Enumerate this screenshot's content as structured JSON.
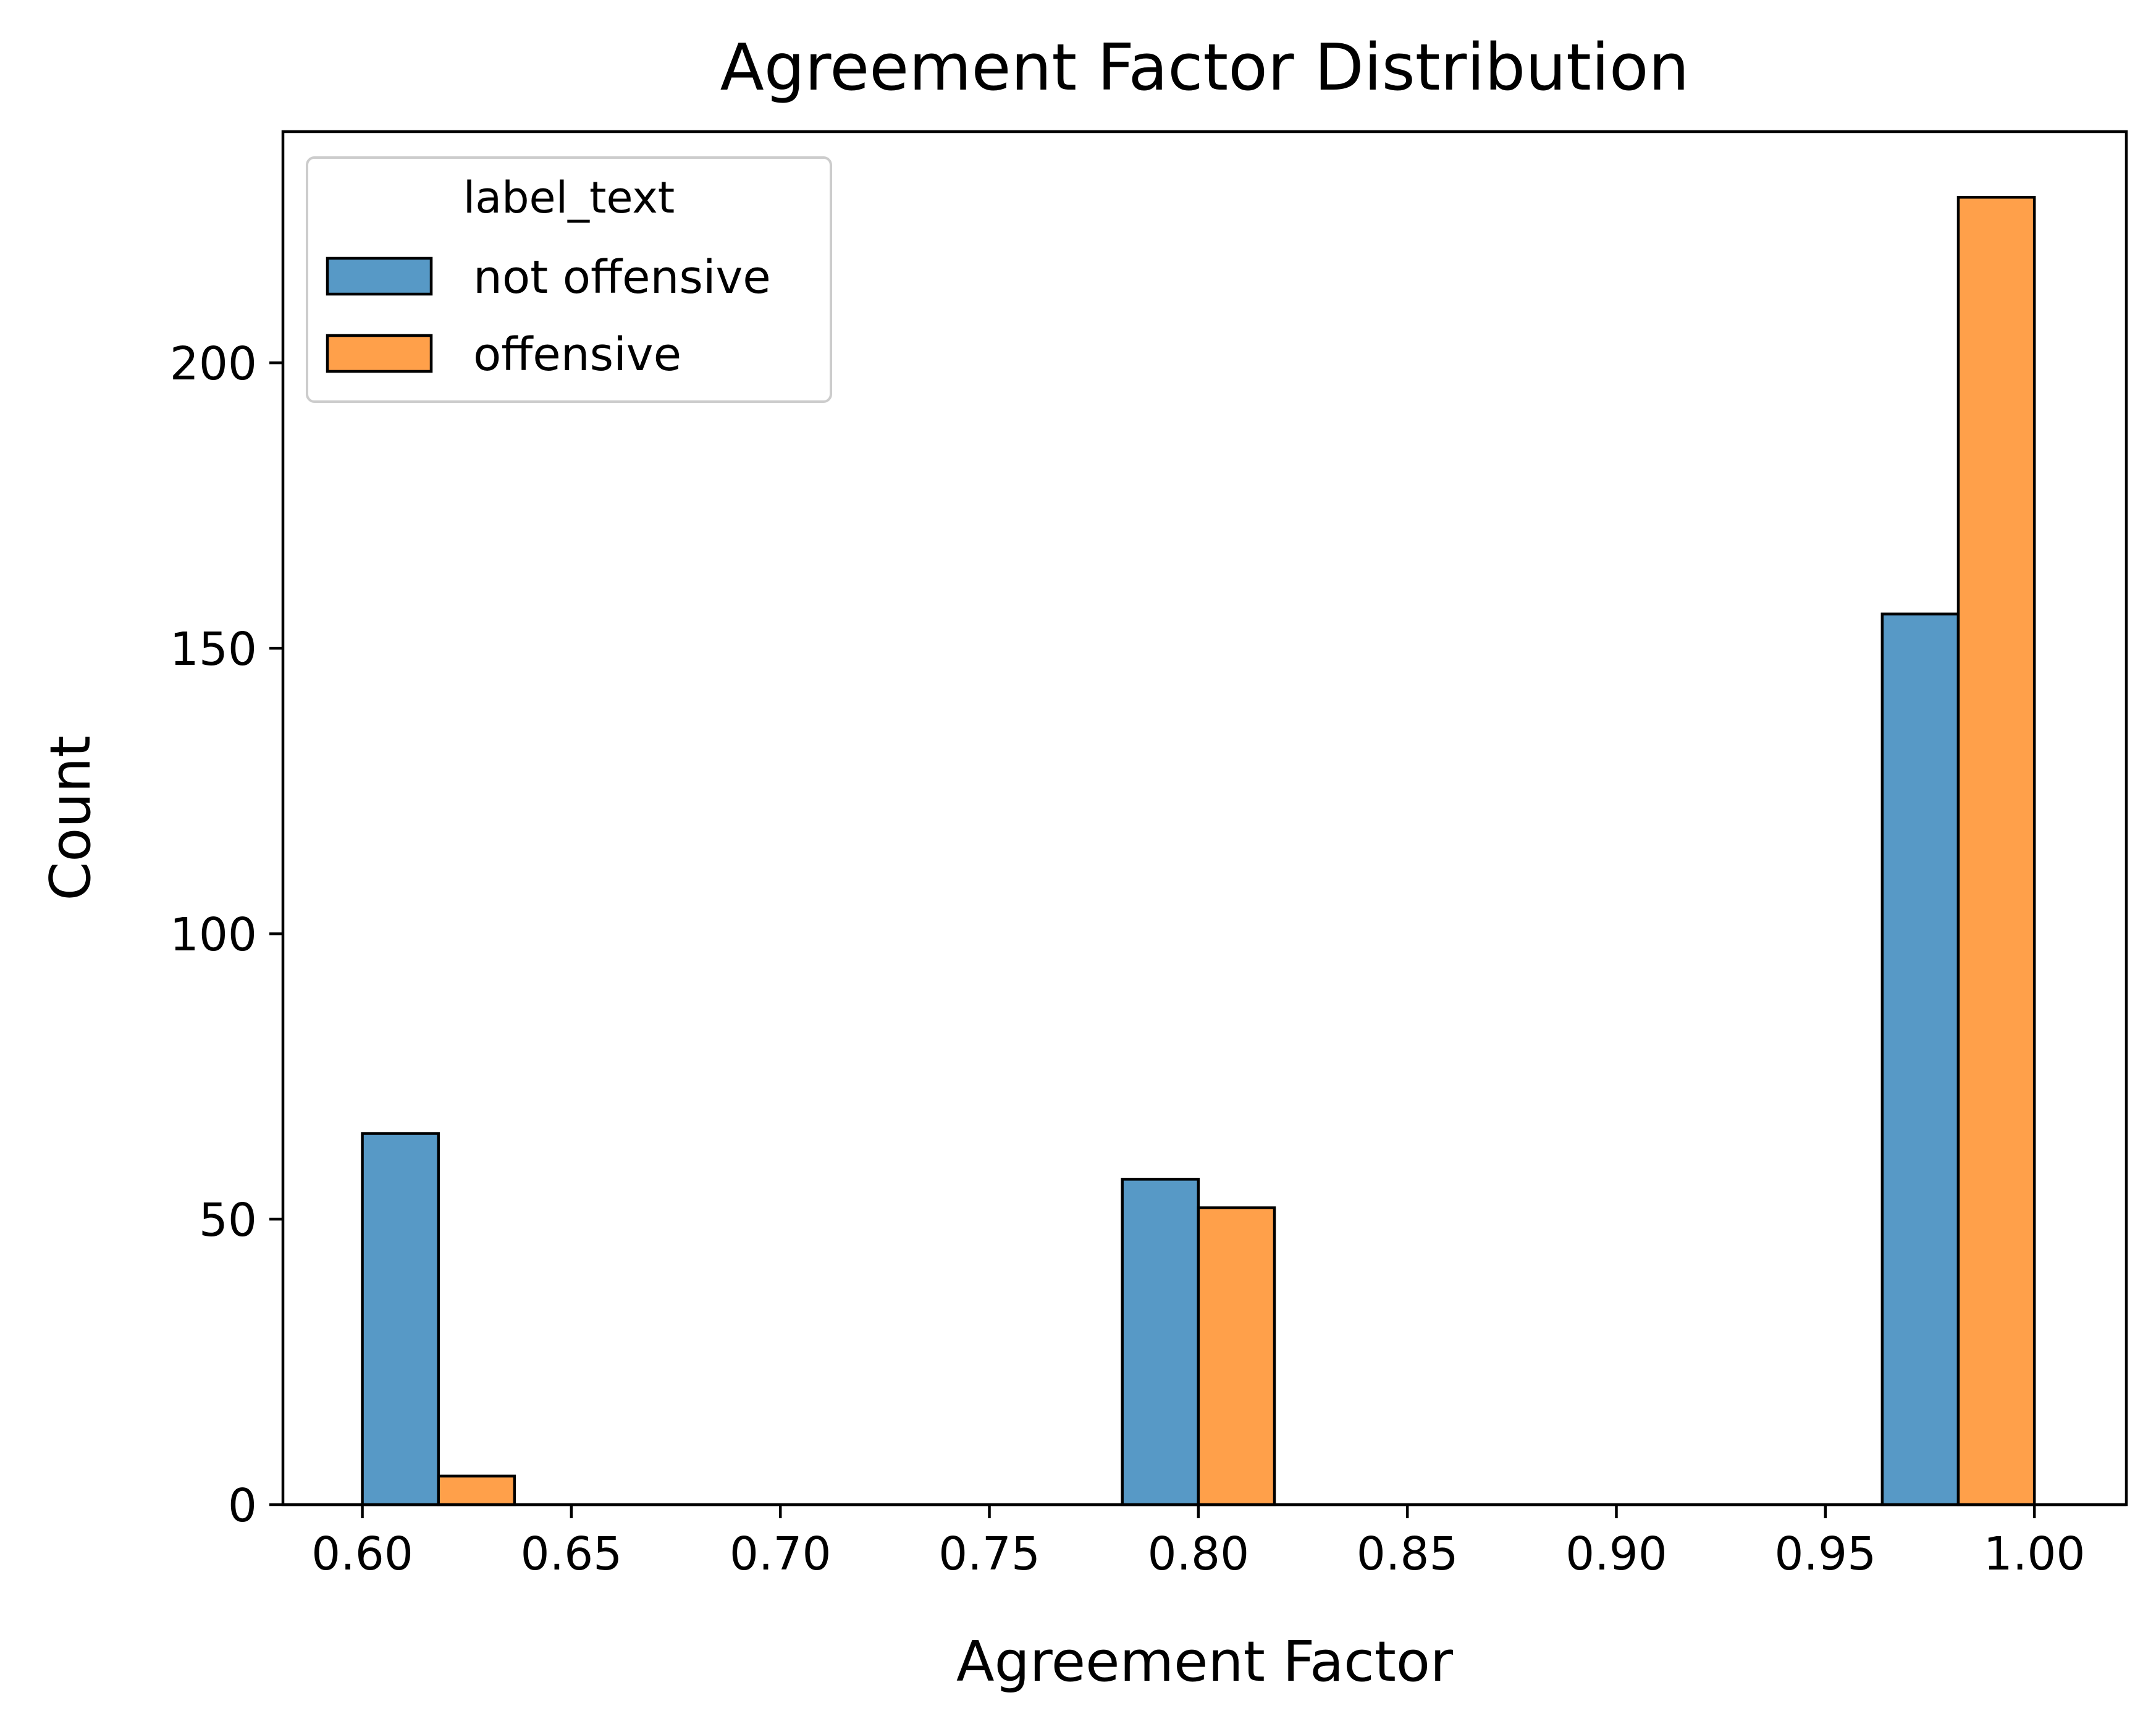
{
  "chart_data": {
    "type": "bar",
    "title": "Agreement Factor Distribution",
    "xlabel": "Agreement Factor",
    "ylabel": "Count",
    "xlim": [
      0.581,
      1.022
    ],
    "ylim": [
      0,
      240.5
    ],
    "x_ticks": [
      "0.60",
      "0.65",
      "0.70",
      "0.75",
      "0.80",
      "0.85",
      "0.90",
      "0.95",
      "1.00"
    ],
    "y_ticks": [
      "0",
      "50",
      "100",
      "150",
      "200"
    ],
    "grid": false,
    "legend": {
      "title": "label_text",
      "position": "top-left"
    },
    "series": [
      {
        "name": "not offensive",
        "color": "#5799c6",
        "bins": [
          {
            "x0": 0.6,
            "x1": 0.6182,
            "value": 65
          },
          {
            "x0": 0.7818,
            "x1": 0.8,
            "value": 57
          },
          {
            "x0": 0.9636,
            "x1": 0.9818,
            "value": 156
          }
        ]
      },
      {
        "name": "offensive",
        "color": "#ffa04a",
        "bins": [
          {
            "x0": 0.6182,
            "x1": 0.6364,
            "value": 5
          },
          {
            "x0": 0.8,
            "x1": 0.8182,
            "value": 52
          },
          {
            "x0": 0.9818,
            "x1": 1.0,
            "value": 229
          }
        ]
      }
    ]
  }
}
